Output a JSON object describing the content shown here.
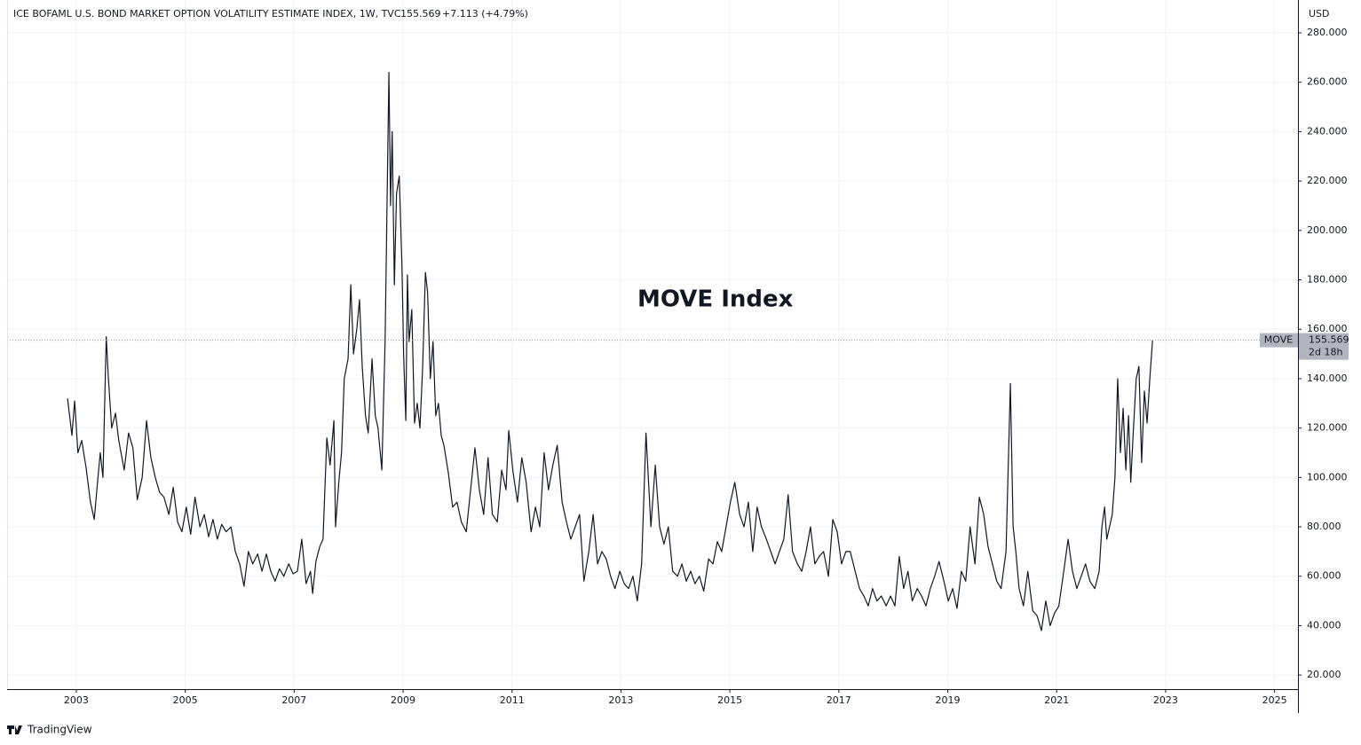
{
  "chart_data": {
    "type": "line",
    "title": "ICE BOFAML U.S. BOND MARKET OPTION VOLATILITY ESTIMATE INDEX, 1W, TVC",
    "change": "+7.113 (+4.79%)",
    "currency": "USD",
    "annotation": "MOVE Index",
    "countdown": "2d 18h",
    "brand": "TradingView",
    "xlim": [
      2001.73,
      2025.43
    ],
    "xticks": [
      2003,
      2005,
      2007,
      2009,
      2011,
      2013,
      2015,
      2017,
      2019,
      2021,
      2023,
      2025
    ],
    "ylim": [
      14.3,
      293.3
    ],
    "yticks": [
      {
        "value": 20,
        "label": "20.000"
      },
      {
        "value": 40,
        "label": "40.000"
      },
      {
        "value": 60,
        "label": "60.000"
      },
      {
        "value": 80,
        "label": "80.000"
      },
      {
        "value": 100,
        "label": "100.000"
      },
      {
        "value": 120,
        "label": "120.000"
      },
      {
        "value": 140,
        "label": "140.000"
      },
      {
        "value": 160,
        "label": "160.000"
      },
      {
        "value": 180,
        "label": "180.000"
      },
      {
        "value": 200,
        "label": "200.000"
      },
      {
        "value": 220,
        "label": "220.000"
      },
      {
        "value": 240,
        "label": "240.000"
      },
      {
        "value": 260,
        "label": "260.000"
      },
      {
        "value": 280,
        "label": "280.000"
      }
    ],
    "grid": true,
    "series": [
      {
        "name": "MOVE",
        "color": "#131722",
        "x": [
          2002.84,
          2002.92,
          2002.97,
          2003.03,
          2003.1,
          2003.18,
          2003.26,
          2003.33,
          2003.39,
          2003.44,
          2003.49,
          2003.55,
          2003.59,
          2003.65,
          2003.72,
          2003.78,
          2003.88,
          2003.96,
          2004.04,
          2004.12,
          2004.21,
          2004.29,
          2004.37,
          2004.45,
          2004.53,
          2004.61,
          2004.7,
          2004.78,
          2004.86,
          2004.94,
          2005.02,
          2005.1,
          2005.18,
          2005.27,
          2005.35,
          2005.43,
          2005.51,
          2005.59,
          2005.67,
          2005.75,
          2005.84,
          2005.92,
          2006.0,
          2006.08,
          2006.16,
          2006.24,
          2006.33,
          2006.41,
          2006.49,
          2006.57,
          2006.65,
          2006.73,
          2006.81,
          2006.9,
          2006.98,
          2007.06,
          2007.14,
          2007.22,
          2007.3,
          2007.34,
          2007.4,
          2007.47,
          2007.53,
          2007.6,
          2007.66,
          2007.73,
          2007.76,
          2007.82,
          2007.87,
          2007.92,
          2007.99,
          2008.04,
          2008.09,
          2008.15,
          2008.2,
          2008.25,
          2008.31,
          2008.36,
          2008.43,
          2008.49,
          2008.54,
          2008.61,
          2008.67,
          2008.74,
          2008.77,
          2008.8,
          2008.84,
          2008.88,
          2008.93,
          2008.98,
          2009.01,
          2009.05,
          2009.08,
          2009.11,
          2009.16,
          2009.21,
          2009.26,
          2009.31,
          2009.36,
          2009.41,
          2009.45,
          2009.5,
          2009.55,
          2009.6,
          2009.65,
          2009.7,
          2009.75,
          2009.83,
          2009.91,
          2009.99,
          2010.07,
          2010.16,
          2010.24,
          2010.32,
          2010.4,
          2010.48,
          2010.56,
          2010.64,
          2010.73,
          2010.81,
          2010.89,
          2010.94,
          2011.02,
          2011.1,
          2011.18,
          2011.26,
          2011.35,
          2011.43,
          2011.51,
          2011.59,
          2011.67,
          2011.75,
          2011.83,
          2011.92,
          2012.0,
          2012.08,
          2012.16,
          2012.24,
          2012.32,
          2012.41,
          2012.49,
          2012.57,
          2012.65,
          2012.73,
          2012.81,
          2012.89,
          2012.98,
          2013.06,
          2013.14,
          2013.22,
          2013.3,
          2013.38,
          2013.46,
          2013.55,
          2013.63,
          2013.71,
          2013.79,
          2013.87,
          2013.95,
          2014.04,
          2014.12,
          2014.2,
          2014.28,
          2014.36,
          2014.44,
          2014.52,
          2014.61,
          2014.69,
          2014.77,
          2014.85,
          2014.93,
          2015.01,
          2015.09,
          2015.18,
          2015.26,
          2015.34,
          2015.42,
          2015.5,
          2015.58,
          2015.67,
          2015.75,
          2015.83,
          2015.91,
          2015.99,
          2016.07,
          2016.15,
          2016.24,
          2016.32,
          2016.4,
          2016.48,
          2016.56,
          2016.64,
          2016.72,
          2016.81,
          2016.89,
          2016.97,
          2017.05,
          2017.13,
          2017.21,
          2017.3,
          2017.38,
          2017.46,
          2017.54,
          2017.62,
          2017.7,
          2017.78,
          2017.87,
          2017.95,
          2018.03,
          2018.11,
          2018.19,
          2018.27,
          2018.35,
          2018.44,
          2018.52,
          2018.6,
          2018.68,
          2018.76,
          2018.84,
          2018.93,
          2019.01,
          2019.09,
          2019.17,
          2019.25,
          2019.33,
          2019.41,
          2019.5,
          2019.58,
          2019.66,
          2019.74,
          2019.82,
          2019.9,
          2019.98,
          2020.07,
          2020.15,
          2020.2,
          2020.25,
          2020.31,
          2020.39,
          2020.47,
          2020.56,
          2020.64,
          2020.72,
          2020.8,
          2020.88,
          2020.96,
          2021.04,
          2021.13,
          2021.21,
          2021.29,
          2021.37,
          2021.45,
          2021.53,
          2021.61,
          2021.7,
          2021.78,
          2021.83,
          2021.88,
          2021.92,
          2021.97,
          2022.02,
          2022.07,
          2022.12,
          2022.17,
          2022.22,
          2022.27,
          2022.32,
          2022.36,
          2022.41,
          2022.46,
          2022.51,
          2022.56,
          2022.61,
          2022.66,
          2022.71,
          2022.76
        ],
        "values": [
          132,
          117,
          131,
          110,
          115,
          104,
          90,
          83,
          98,
          110,
          100,
          157,
          140,
          120,
          126,
          115,
          103,
          118,
          112,
          91,
          100,
          123,
          108,
          100,
          94,
          92,
          85,
          96,
          82,
          78,
          88,
          77,
          92,
          80,
          85,
          76,
          83,
          75,
          81,
          78,
          80,
          70,
          65,
          56,
          70,
          65,
          69,
          62,
          69,
          62,
          58,
          63,
          60,
          65,
          61,
          62,
          75,
          57,
          62,
          53,
          66,
          72,
          75,
          116,
          105,
          123,
          80,
          98,
          110,
          140,
          148,
          178,
          150,
          160,
          172,
          145,
          125,
          118,
          148,
          125,
          120,
          103,
          155,
          264,
          210,
          240,
          178,
          215,
          222,
          185,
          150,
          123,
          182,
          155,
          168,
          122,
          130,
          120,
          145,
          183,
          175,
          140,
          155,
          125,
          130,
          117,
          113,
          102,
          88,
          90,
          82,
          78,
          95,
          112,
          95,
          85,
          108,
          85,
          82,
          103,
          95,
          119,
          102,
          90,
          108,
          98,
          78,
          88,
          80,
          110,
          95,
          105,
          113,
          90,
          82,
          75,
          80,
          85,
          58,
          70,
          85,
          65,
          70,
          67,
          60,
          55,
          62,
          57,
          55,
          60,
          50,
          65,
          118,
          80,
          105,
          80,
          73,
          80,
          62,
          60,
          65,
          58,
          62,
          57,
          60,
          54,
          67,
          65,
          74,
          70,
          80,
          90,
          98,
          85,
          80,
          90,
          70,
          88,
          80,
          75,
          70,
          65,
          70,
          75,
          93,
          70,
          65,
          62,
          70,
          80,
          65,
          68,
          70,
          60,
          83,
          78,
          65,
          70,
          70,
          62,
          55,
          52,
          48,
          55,
          50,
          52,
          48,
          52,
          48,
          68,
          55,
          62,
          50,
          55,
          52,
          48,
          55,
          60,
          66,
          58,
          50,
          55,
          47,
          62,
          58,
          80,
          65,
          92,
          85,
          72,
          65,
          58,
          55,
          70,
          138,
          80,
          70,
          55,
          48,
          62,
          46,
          44,
          38,
          50,
          40,
          45,
          48,
          62,
          75,
          62,
          55,
          60,
          65,
          58,
          55,
          62,
          80,
          88,
          75,
          80,
          85,
          100,
          140,
          110,
          128,
          103,
          125,
          98,
          120,
          140,
          145,
          106,
          135,
          122,
          140,
          155.569
        ]
      }
    ]
  }
}
